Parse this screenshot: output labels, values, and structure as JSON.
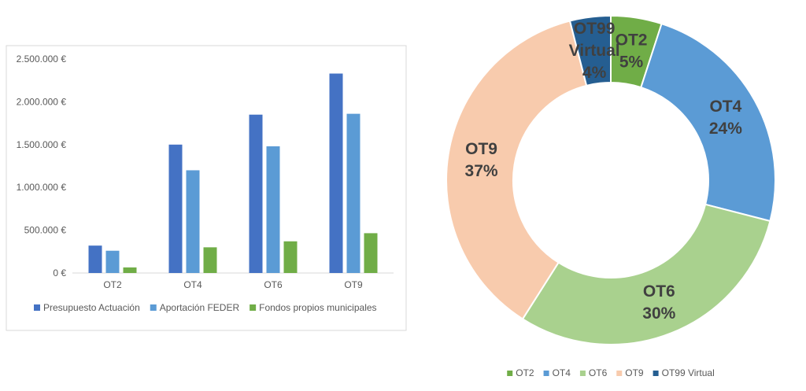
{
  "chart_data": [
    {
      "type": "bar",
      "categories": [
        "OT2",
        "OT4",
        "OT6",
        "OT9"
      ],
      "series": [
        {
          "name": "Presupuesto Actuación",
          "values": [
            320000,
            1500000,
            1850000,
            2330000
          ],
          "color": "#4472c4"
        },
        {
          "name": "Aportación FEDER",
          "values": [
            260000,
            1200000,
            1480000,
            1860000
          ],
          "color": "#5b9bd5"
        },
        {
          "name": "Fondos propios municipales",
          "values": [
            65000,
            300000,
            370000,
            465000
          ],
          "color": "#70ad47"
        }
      ],
      "ylim": [
        0,
        2500000
      ],
      "yticks": [
        {
          "value": 0,
          "label": "0 €"
        },
        {
          "value": 500000,
          "label": "500.000 €"
        },
        {
          "value": 1000000,
          "label": "1.000.000 €"
        },
        {
          "value": 1500000,
          "label": "1.500.000 €"
        },
        {
          "value": 2000000,
          "label": "2.000.000 €"
        },
        {
          "value": 2500000,
          "label": "2.500.000 €"
        }
      ],
      "grid": false,
      "legend_position": "bottom"
    },
    {
      "type": "pie",
      "style": "donut",
      "slices": [
        {
          "label_lines": [
            "OT2"
          ],
          "percent_label": "5%",
          "value": 5,
          "color": "#70ad47",
          "legend": "OT2"
        },
        {
          "label_lines": [
            "OT4"
          ],
          "percent_label": "24%",
          "value": 24,
          "color": "#5b9bd5",
          "legend": "OT4"
        },
        {
          "label_lines": [
            "OT6"
          ],
          "percent_label": "30%",
          "value": 30,
          "color": "#a9d18e",
          "legend": "OT6"
        },
        {
          "label_lines": [
            "OT9"
          ],
          "percent_label": "37%",
          "value": 37,
          "color": "#f8cbad",
          "legend": "OT9"
        },
        {
          "label_lines": [
            "OT99",
            "Virtual"
          ],
          "percent_label": "4%",
          "value": 4,
          "color": "#255e91",
          "legend": "OT99 Virtual"
        }
      ],
      "legend_position": "bottom"
    }
  ]
}
